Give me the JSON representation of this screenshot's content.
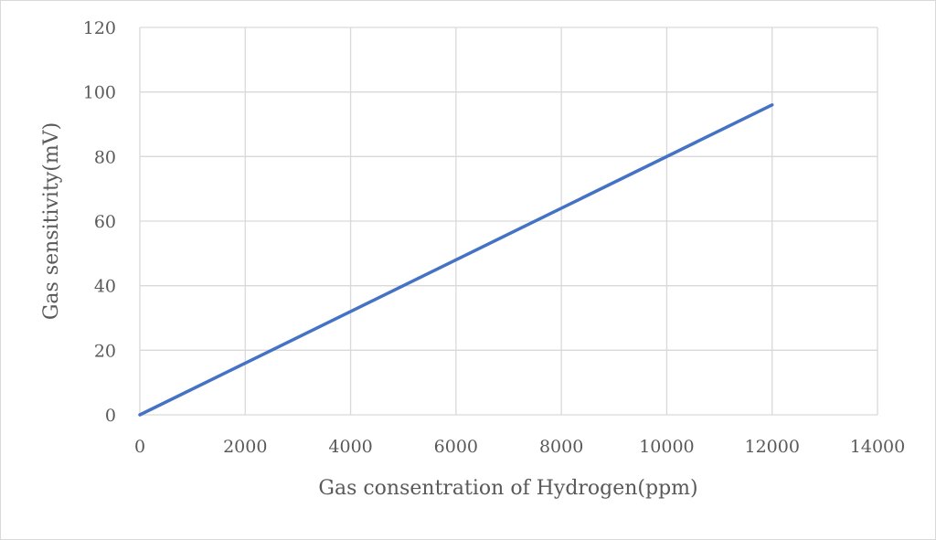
{
  "chart_data": {
    "type": "line",
    "title": "",
    "xlabel": "Gas consentration of Hydrogen(ppm)",
    "ylabel": "Gas sensitivity(mV)",
    "xlim": [
      0,
      14000
    ],
    "ylim": [
      0,
      120
    ],
    "x_ticks": [
      0,
      2000,
      4000,
      6000,
      8000,
      10000,
      12000,
      14000
    ],
    "y_ticks": [
      0,
      20,
      40,
      60,
      80,
      100,
      120
    ],
    "grid": true,
    "legend": "none",
    "series": [
      {
        "color": "#4472c4",
        "points": [
          [
            0,
            0
          ],
          [
            12000,
            96
          ]
        ]
      }
    ]
  }
}
